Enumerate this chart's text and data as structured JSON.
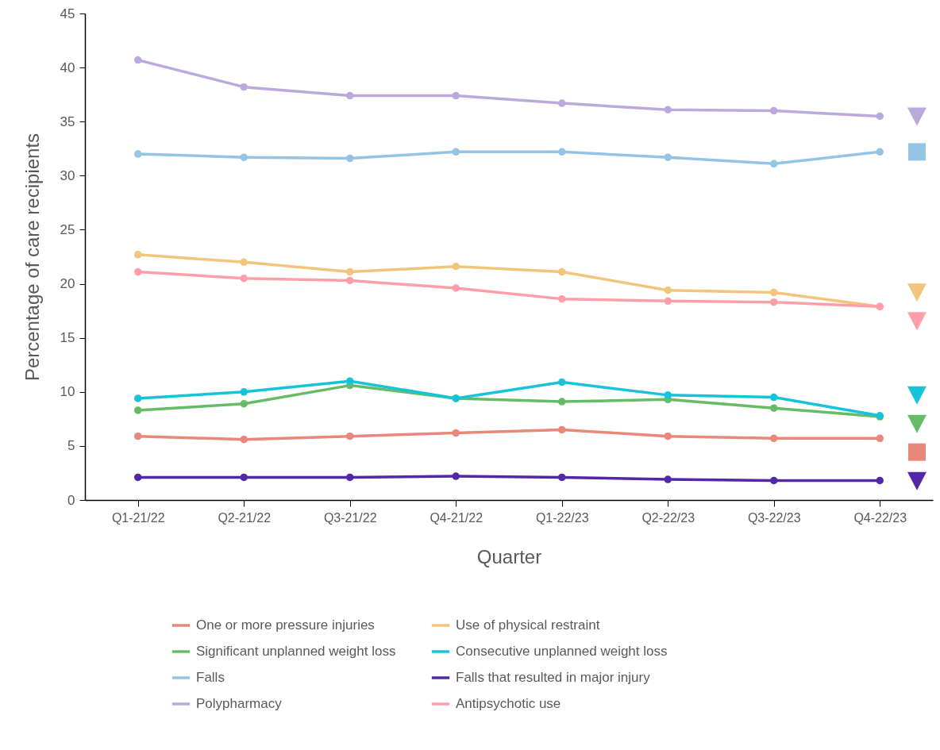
{
  "chart_data": {
    "type": "line",
    "xlabel": "Quarter",
    "ylabel": "Percentage of care recipients",
    "categories": [
      "Q1-21/22",
      "Q2-21/22",
      "Q3-21/22",
      "Q4-21/22",
      "Q1-22/23",
      "Q2-22/23",
      "Q3-22/23",
      "Q4-22/23"
    ],
    "series": [
      {
        "name": "One or more pressure injuries",
        "color": "#e8877a",
        "values": [
          5.9,
          5.6,
          5.9,
          6.2,
          6.5,
          5.9,
          5.7,
          5.7
        ]
      },
      {
        "name": "Use of physical restraint",
        "color": "#f2c57c",
        "values": [
          22.7,
          22.0,
          21.1,
          21.6,
          21.1,
          19.4,
          19.2,
          17.9
        ]
      },
      {
        "name": "Significant unplanned weight loss",
        "color": "#66bb66",
        "values": [
          8.3,
          8.9,
          10.6,
          9.4,
          9.1,
          9.3,
          8.5,
          7.7
        ]
      },
      {
        "name": "Consecutive unplanned weight loss",
        "color": "#17c3d8",
        "values": [
          9.4,
          10.0,
          11.0,
          9.4,
          10.9,
          9.7,
          9.5,
          7.8
        ]
      },
      {
        "name": "Falls",
        "color": "#93c4e4",
        "values": [
          32.0,
          31.7,
          31.6,
          32.2,
          32.2,
          31.7,
          31.1,
          32.2
        ]
      },
      {
        "name": "Falls that resulted in major injury",
        "color": "#5228a8",
        "values": [
          2.1,
          2.1,
          2.1,
          2.2,
          2.1,
          1.9,
          1.8,
          1.8
        ]
      },
      {
        "name": "Polypharmacy",
        "color": "#bda8dc",
        "values": [
          40.7,
          38.2,
          37.4,
          37.4,
          36.7,
          36.1,
          36.0,
          35.5
        ]
      },
      {
        "name": "Antipsychotic use",
        "color": "#ff9ea8",
        "values": [
          21.1,
          20.5,
          20.3,
          19.6,
          18.6,
          18.4,
          18.3,
          17.9
        ]
      }
    ],
    "ylim": [
      0,
      45
    ],
    "yticks": [
      0,
      5,
      10,
      15,
      20,
      25,
      30,
      35,
      40,
      45
    ],
    "legend": "bottom",
    "marker": "circle",
    "line_style": "solid",
    "grid": false
  }
}
